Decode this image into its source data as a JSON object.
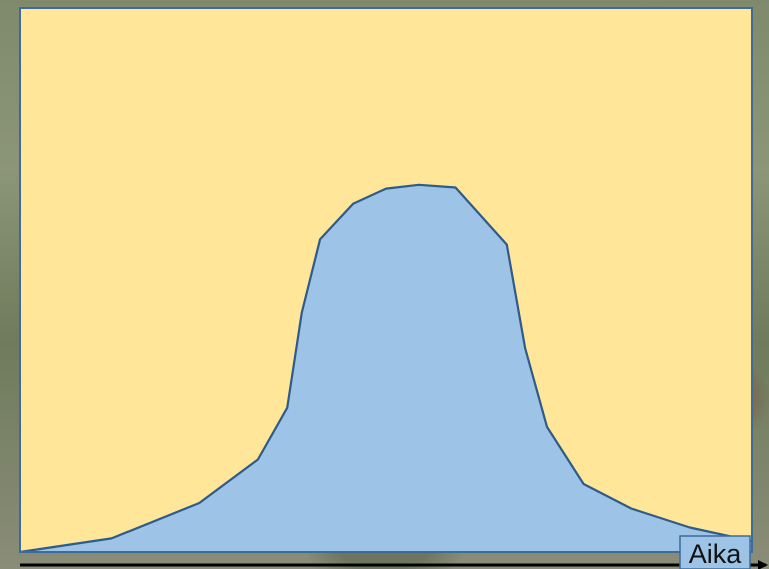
{
  "chart_data": {
    "type": "area",
    "title": "",
    "xlabel": "Aika",
    "ylabel": "",
    "grid": false,
    "legend": "none",
    "x": [
      0,
      0.125,
      0.245,
      0.325,
      0.365,
      0.385,
      0.41,
      0.455,
      0.5,
      0.545,
      0.595,
      0.625,
      0.665,
      0.69,
      0.72,
      0.77,
      0.835,
      0.915,
      1.0
    ],
    "series": [
      {
        "values": [
          0.0,
          0.025,
          0.09,
          0.17,
          0.265,
          0.44,
          0.575,
          0.64,
          0.668,
          0.675,
          0.67,
          0.625,
          0.565,
          0.375,
          0.23,
          0.125,
          0.08,
          0.045,
          0.02
        ]
      }
    ],
    "xlim": [
      0,
      1
    ],
    "ylim": [
      0,
      1
    ],
    "colors": {
      "background_fill": "#FFE699",
      "area_fill": "#9DC3E6",
      "line": "#2F5B8A",
      "frame": "#3D6B9A",
      "axis": "#000000"
    }
  }
}
